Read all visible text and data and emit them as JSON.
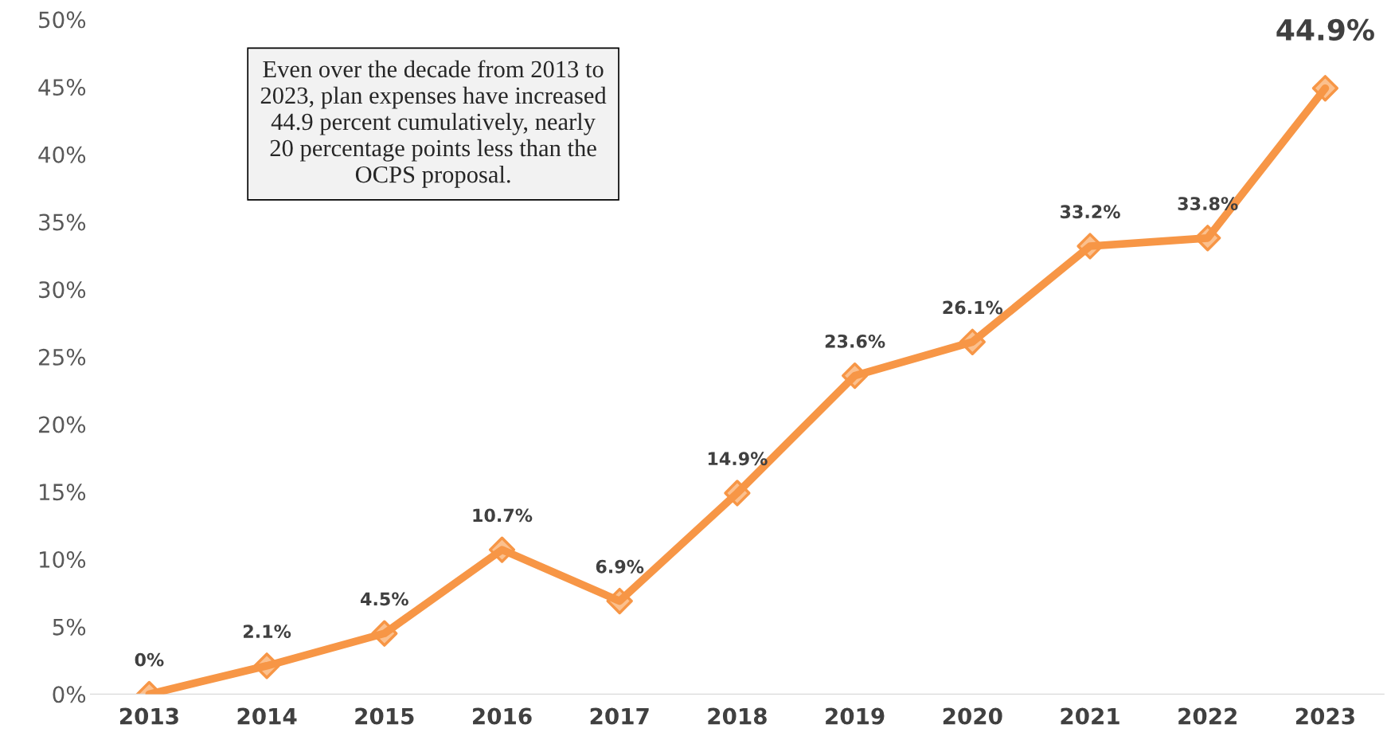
{
  "chart_data": {
    "type": "line",
    "categories": [
      "2013",
      "2014",
      "2015",
      "2016",
      "2017",
      "2018",
      "2019",
      "2020",
      "2021",
      "2022",
      "2023"
    ],
    "series": [
      {
        "color": "#f79646",
        "values": [
          0,
          2.1,
          4.5,
          10.7,
          6.9,
          14.9,
          23.6,
          26.1,
          33.2,
          33.8,
          44.9
        ],
        "value_labels": [
          "0%",
          "2.1%",
          "4.5%",
          "10.7%",
          "6.9%",
          "14.9%",
          "23.6%",
          "26.1%",
          "33.2%",
          "33.8%",
          "44.9%"
        ]
      }
    ],
    "ylim": [
      0,
      50
    ],
    "yticks": [
      {
        "value": 0,
        "label": "0%"
      },
      {
        "value": 5,
        "label": "5%"
      },
      {
        "value": 10,
        "label": "10%"
      },
      {
        "value": 15,
        "label": "15%"
      },
      {
        "value": 20,
        "label": "20%"
      },
      {
        "value": 25,
        "label": "25%"
      },
      {
        "value": 30,
        "label": "30%"
      },
      {
        "value": 35,
        "label": "35%"
      },
      {
        "value": 40,
        "label": "40%"
      },
      {
        "value": 45,
        "label": "45%"
      },
      {
        "value": 50,
        "label": "50%"
      }
    ],
    "marker": "diamond",
    "grid": false,
    "annotations": [
      "Even over the decade from 2013 to\n2023, plan expenses have increased\n44.9 percent cumulatively, nearly\n20 percentage points less than the\nOCPS proposal."
    ]
  }
}
